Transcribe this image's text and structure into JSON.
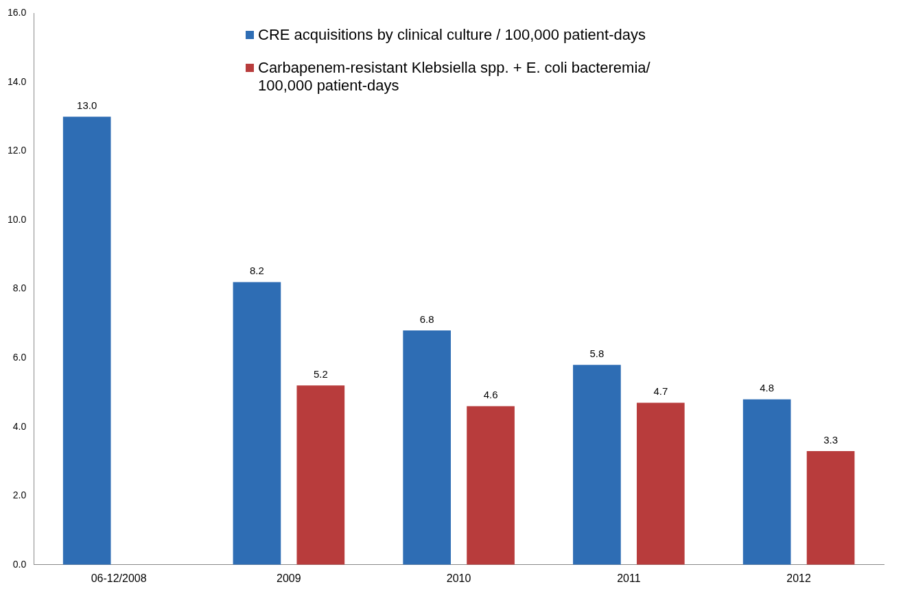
{
  "chart_data": {
    "type": "bar",
    "categories": [
      "06-12/2008",
      "2009",
      "2010",
      "2011",
      "2012"
    ],
    "series": [
      {
        "name": "CRE acquisitions by clinical culture / 100,000 patient-days",
        "color": "#2e6db4",
        "values": [
          13.0,
          8.2,
          6.8,
          5.8,
          4.8
        ],
        "value_labels": [
          "13.0",
          "8.2",
          "6.8",
          "5.8",
          "4.8"
        ]
      },
      {
        "name": "Carbapenem-resistant Klebsiella spp. + E. coli bacteremia/ 100,000 patient-days",
        "color": "#b83c3c",
        "values": [
          null,
          5.2,
          4.6,
          4.7,
          3.3
        ],
        "value_labels": [
          null,
          "5.2",
          "4.6",
          "4.7",
          "3.3"
        ]
      }
    ],
    "ylim": [
      0,
      16
    ],
    "yticks": [
      {
        "value": 0,
        "label": "0.0"
      },
      {
        "value": 2,
        "label": "2.0"
      },
      {
        "value": 4,
        "label": "4.0"
      },
      {
        "value": 6,
        "label": "6.0"
      },
      {
        "value": 8,
        "label": "8.0"
      },
      {
        "value": 10,
        "label": "10.0"
      },
      {
        "value": 12,
        "label": "12.0"
      },
      {
        "value": 14,
        "label": "14.0"
      },
      {
        "value": 16,
        "label": "16.0"
      }
    ],
    "grid": false,
    "legend": "top"
  }
}
